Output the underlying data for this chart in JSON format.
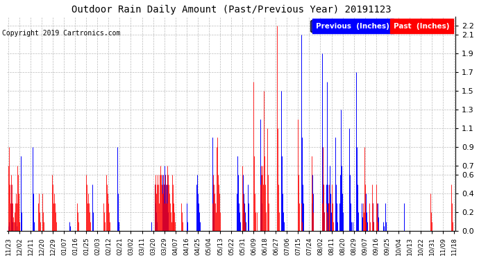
{
  "title": "Outdoor Rain Daily Amount (Past/Previous Year) 20191123",
  "copyright": "Copyright 2019 Cartronics.com",
  "legend_labels": [
    "Previous  (Inches)",
    "Past  (Inches)"
  ],
  "ylim": [
    0.0,
    2.3
  ],
  "yticks": [
    0.0,
    0.2,
    0.4,
    0.6,
    0.7,
    0.9,
    1.1,
    1.3,
    1.5,
    1.7,
    1.9,
    2.1,
    2.2
  ],
  "background_color": "#ffffff",
  "grid_color": "#bbbbbb",
  "x_labels": [
    "11/23",
    "12/02",
    "12/11",
    "12/20",
    "12/29",
    "01/07",
    "01/16",
    "01/25",
    "02/03",
    "02/12",
    "02/21",
    "03/02",
    "03/11",
    "03/20",
    "03/29",
    "04/07",
    "04/16",
    "04/25",
    "05/04",
    "05/13",
    "05/22",
    "05/31",
    "06/09",
    "06/18",
    "06/27",
    "07/06",
    "07/15",
    "07/24",
    "08/02",
    "08/11",
    "08/20",
    "08/29",
    "09/07",
    "09/16",
    "09/25",
    "10/04",
    "10/13",
    "10/22",
    "10/31",
    "11/09",
    "11/18"
  ],
  "blue_data": [
    0.05,
    0.1,
    0.0,
    0.0,
    0.5,
    0.3,
    0.1,
    0.0,
    0.0,
    0.0,
    0.1,
    0.0,
    0.05,
    0.0,
    0.0,
    0.0,
    0.0,
    0.0,
    0.0,
    0.8,
    0.2,
    0.0,
    0.0,
    0.0,
    0.0,
    0.0,
    0.0,
    0.0,
    0.0,
    0.0,
    0.0,
    0.0,
    0.0,
    0.0,
    0.0,
    0.0,
    0.9,
    0.4,
    0.1,
    0.0,
    0.0,
    0.0,
    0.0,
    0.0,
    0.0,
    0.0,
    0.0,
    0.0,
    0.0,
    0.0,
    0.0,
    0.0,
    0.0,
    0.0,
    0.0,
    0.0,
    0.0,
    0.0,
    0.0,
    0.0,
    0.0,
    0.0,
    0.0,
    0.0,
    0.0,
    0.0,
    0.0,
    0.0,
    0.0,
    0.0,
    0.0,
    0.0,
    0.0,
    0.0,
    0.0,
    0.0,
    0.0,
    0.0,
    0.0,
    0.0,
    0.0,
    0.0,
    0.0,
    0.0,
    0.0,
    0.0,
    0.0,
    0.0,
    0.0,
    0.0,
    0.1,
    0.05,
    0.0,
    0.0,
    0.0,
    0.0,
    0.0,
    0.0,
    0.0,
    0.0,
    0.0,
    0.0,
    0.0,
    0.0,
    0.0,
    0.0,
    0.0,
    0.0,
    0.0,
    0.0,
    0.0,
    0.0,
    0.0,
    0.0,
    0.0,
    0.0,
    0.0,
    0.0,
    0.0,
    0.0,
    0.0,
    0.0,
    0.0,
    0.5,
    0.2,
    0.0,
    0.0,
    0.0,
    0.0,
    0.0,
    0.0,
    0.0,
    0.0,
    0.0,
    0.0,
    0.0,
    0.0,
    0.0,
    0.0,
    0.0,
    0.0,
    0.0,
    0.0,
    0.0,
    0.0,
    0.0,
    0.0,
    0.0,
    0.0,
    0.0,
    0.0,
    0.0,
    0.0,
    0.0,
    0.0,
    0.0,
    0.0,
    0.0,
    0.0,
    0.0,
    0.9,
    0.4,
    0.1,
    0.0,
    0.0,
    0.0,
    0.0,
    0.0,
    0.0,
    0.0,
    0.0,
    0.0,
    0.0,
    0.0,
    0.0,
    0.0,
    0.0,
    0.0,
    0.0,
    0.0,
    0.0,
    0.0,
    0.0,
    0.0,
    0.0,
    0.0,
    0.0,
    0.0,
    0.0,
    0.0,
    0.0,
    0.0,
    0.0,
    0.0,
    0.0,
    0.0,
    0.0,
    0.0,
    0.0,
    0.0,
    0.0,
    0.0,
    0.0,
    0.0,
    0.0,
    0.0,
    0.0,
    0.0,
    0.0,
    0.0,
    0.1,
    0.0,
    0.0,
    0.0,
    0.0,
    0.5,
    0.3,
    0.2,
    0.1,
    0.0,
    0.0,
    0.0,
    0.0,
    0.0,
    0.0,
    0.0,
    0.6,
    0.4,
    0.5,
    0.7,
    0.6,
    0.3,
    0.5,
    0.6,
    0.2,
    0.0,
    0.0,
    0.0,
    0.0,
    0.0,
    0.0,
    0.0,
    0.0,
    0.0,
    0.0,
    0.0,
    0.0,
    0.0,
    0.0,
    0.0,
    0.0,
    0.0,
    0.0,
    0.0,
    0.0,
    0.0,
    0.0,
    0.0,
    0.0,
    0.0,
    0.0,
    0.0,
    0.3,
    0.1,
    0.0,
    0.0,
    0.0,
    0.0,
    0.0,
    0.0,
    0.0,
    0.0,
    0.0,
    0.0,
    0.0,
    0.0,
    0.5,
    0.6,
    0.4,
    0.3,
    0.2,
    0.1,
    0.0,
    0.0,
    0.0,
    0.0,
    0.0,
    0.0,
    0.0,
    0.0,
    0.0,
    0.0,
    0.0,
    0.0,
    0.0,
    0.0,
    0.0,
    0.0,
    0.0,
    0.0,
    1.0,
    0.5,
    0.3,
    0.0,
    0.0,
    0.0,
    0.0,
    0.0,
    0.0,
    0.0,
    0.0,
    0.0,
    0.0,
    0.0,
    0.0,
    0.0,
    0.0,
    0.0,
    0.0,
    0.0,
    0.0,
    0.0,
    0.0,
    0.0,
    0.0,
    0.0,
    0.0,
    0.0,
    0.0,
    0.0,
    0.0,
    0.0,
    0.0,
    0.0,
    0.0,
    0.4,
    0.8,
    0.6,
    0.3,
    0.2,
    0.1,
    0.0,
    0.0,
    0.0,
    0.6,
    0.4,
    0.3,
    0.2,
    0.1,
    0.0,
    0.0,
    0.5,
    0.3,
    0.0,
    0.0,
    0.0,
    0.0,
    0.0,
    0.0,
    0.0,
    0.0,
    0.0,
    0.0,
    0.0,
    0.0,
    0.0,
    0.0,
    0.0,
    0.0,
    0.0,
    1.2,
    0.6,
    0.3,
    0.0,
    0.0,
    0.0,
    0.0,
    0.0,
    0.0,
    0.0,
    0.0,
    0.0,
    0.0,
    0.0,
    0.0,
    0.0,
    0.0,
    0.0,
    0.0,
    0.0,
    0.0,
    0.0,
    0.0,
    0.0,
    0.0,
    0.0,
    0.0,
    0.0,
    0.0,
    0.0,
    1.5,
    0.8,
    0.4,
    0.2,
    0.1,
    0.0,
    0.0,
    0.0,
    0.0,
    0.0,
    0.0,
    0.0,
    0.0,
    0.0,
    0.0,
    0.0,
    0.0,
    0.0,
    0.0,
    0.0,
    0.0,
    0.0,
    0.0,
    0.0,
    0.0,
    0.0,
    0.0,
    0.0,
    0.0,
    0.0,
    2.1,
    1.0,
    0.5,
    0.3,
    0.0,
    0.0,
    0.0,
    0.0,
    0.0,
    0.0,
    0.0,
    0.0,
    0.0,
    0.0,
    0.0,
    0.3,
    0.6,
    0.4,
    0.0,
    0.0,
    0.0,
    0.0,
    0.0,
    0.0,
    0.0,
    0.0,
    0.0,
    0.0,
    0.0,
    0.0,
    1.9,
    0.9,
    0.5,
    0.2,
    0.0,
    0.0,
    0.5,
    1.6,
    0.8,
    0.5,
    0.3,
    0.0,
    0.7,
    0.4,
    0.2,
    0.0,
    0.0,
    0.0,
    0.0,
    0.0,
    1.0,
    0.5,
    0.3,
    0.1,
    0.0,
    0.0,
    0.3,
    0.6,
    1.3,
    0.7,
    0.4,
    0.2,
    0.0,
    0.0,
    0.0,
    0.0,
    0.0,
    0.0,
    0.0,
    0.0,
    1.1,
    0.6,
    0.3,
    0.1,
    0.0,
    0.1,
    0.0,
    0.0,
    0.0,
    0.0,
    1.7,
    0.9,
    0.5,
    0.2,
    0.0,
    0.0,
    0.0,
    0.0,
    0.3,
    0.15,
    0.0,
    0.0,
    0.0,
    0.0,
    0.0,
    0.4,
    0.2,
    0.1,
    0.0,
    0.0,
    0.0,
    0.0,
    0.0,
    0.0,
    0.0,
    0.3,
    0.1,
    0.0,
    0.0,
    0.0,
    0.0,
    0.0,
    0.3,
    0.15,
    0.0,
    0.0,
    0.0,
    0.0,
    0.0,
    0.0,
    0.1,
    0.05,
    0.0,
    0.3,
    0.1,
    0.0,
    0.0,
    0.0,
    0.0,
    0.0,
    0.0,
    0.0,
    0.0,
    0.0,
    0.0,
    0.0,
    0.0,
    0.0,
    0.0,
    0.0,
    0.0,
    0.0,
    0.0,
    0.0,
    0.0,
    0.0,
    0.0,
    0.0,
    0.0,
    0.0,
    0.3,
    0.15,
    0.0,
    0.0,
    0.0,
    0.0,
    0.0,
    0.0,
    0.0,
    0.0,
    0.0,
    0.0,
    0.0,
    0.0,
    0.0,
    0.0,
    0.0,
    0.0,
    0.0,
    0.0,
    0.0,
    0.0,
    0.0,
    0.0,
    0.0,
    0.0,
    0.0,
    0.0,
    0.0,
    0.0,
    0.0,
    0.0,
    0.0,
    0.0,
    0.0,
    0.0,
    0.0,
    0.0,
    0.0,
    0.0,
    0.0,
    0.0,
    0.0,
    0.0,
    0.0,
    0.0,
    0.0,
    0.0,
    0.0,
    0.0,
    0.0,
    0.0,
    0.0,
    0.0,
    0.0,
    0.0,
    0.0,
    0.0,
    0.0,
    0.0,
    0.0,
    0.0,
    0.0,
    0.0,
    0.0,
    0.0,
    0.0,
    0.0,
    0.0,
    0.0,
    0.0,
    0.0,
    0.0,
    0.0,
    0.0
  ],
  "red_data": [
    0.7,
    0.9,
    0.5,
    0.3,
    0.6,
    0.5,
    0.3,
    0.15,
    0.1,
    0.2,
    0.3,
    0.4,
    0.3,
    0.7,
    0.6,
    0.4,
    0.3,
    0.1,
    0.0,
    0.0,
    0.0,
    0.0,
    0.0,
    0.0,
    0.0,
    0.0,
    0.0,
    0.0,
    0.0,
    0.0,
    0.0,
    0.0,
    0.0,
    0.0,
    0.0,
    0.0,
    0.0,
    0.0,
    0.0,
    0.0,
    0.0,
    0.0,
    0.0,
    0.0,
    0.3,
    0.4,
    0.2,
    0.1,
    0.0,
    0.0,
    0.4,
    0.2,
    0.1,
    0.0,
    0.0,
    0.0,
    0.0,
    0.0,
    0.0,
    0.0,
    0.0,
    0.0,
    0.0,
    0.0,
    0.6,
    0.5,
    0.3,
    0.4,
    0.3,
    0.2,
    0.1,
    0.0,
    0.0,
    0.0,
    0.0,
    0.0,
    0.0,
    0.0,
    0.0,
    0.0,
    0.0,
    0.0,
    0.0,
    0.0,
    0.0,
    0.0,
    0.0,
    0.0,
    0.0,
    0.0,
    0.0,
    0.0,
    0.0,
    0.0,
    0.0,
    0.0,
    0.0,
    0.0,
    0.0,
    0.0,
    0.0,
    0.3,
    0.2,
    0.1,
    0.0,
    0.0,
    0.0,
    0.0,
    0.0,
    0.0,
    0.0,
    0.0,
    0.0,
    0.0,
    0.6,
    0.5,
    0.3,
    0.4,
    0.3,
    0.2,
    0.1,
    0.0,
    0.0,
    0.0,
    0.0,
    0.0,
    0.0,
    0.0,
    0.0,
    0.0,
    0.0,
    0.0,
    0.0,
    0.0,
    0.0,
    0.0,
    0.0,
    0.0,
    0.0,
    0.0,
    0.3,
    0.2,
    0.1,
    0.0,
    0.6,
    0.5,
    0.4,
    0.3,
    0.2,
    0.1,
    0.0,
    0.0,
    0.0,
    0.0,
    0.0,
    0.0,
    0.0,
    0.0,
    0.0,
    0.0,
    0.0,
    0.0,
    0.0,
    0.0,
    0.0,
    0.0,
    0.0,
    0.0,
    0.0,
    0.0,
    0.0,
    0.0,
    0.0,
    0.0,
    0.0,
    0.0,
    0.0,
    0.0,
    0.0,
    0.0,
    0.0,
    0.0,
    0.0,
    0.0,
    0.0,
    0.0,
    0.0,
    0.0,
    0.0,
    0.0,
    0.0,
    0.0,
    0.0,
    0.0,
    0.0,
    0.0,
    0.0,
    0.0,
    0.0,
    0.0,
    0.0,
    0.0,
    0.0,
    0.0,
    0.0,
    0.0,
    0.0,
    0.0,
    0.0,
    0.0,
    0.0,
    0.0,
    0.0,
    0.0,
    0.0,
    0.5,
    0.6,
    0.4,
    0.5,
    0.6,
    0.5,
    0.3,
    0.6,
    0.7,
    0.6,
    0.5,
    0.4,
    0.6,
    0.5,
    0.3,
    0.6,
    0.5,
    0.3,
    0.7,
    0.6,
    0.5,
    0.4,
    0.3,
    0.2,
    0.1,
    0.6,
    0.5,
    0.4,
    0.3,
    0.2,
    0.1,
    0.0,
    0.0,
    0.0,
    0.0,
    0.0,
    0.0,
    0.0,
    0.0,
    0.3,
    0.2,
    0.1,
    0.0,
    0.0,
    0.0,
    0.0,
    0.0,
    0.0,
    0.0,
    0.0,
    0.0,
    0.0,
    0.0,
    0.0,
    0.0,
    0.0,
    0.0,
    0.0,
    0.0,
    0.0,
    0.0,
    0.0,
    0.0,
    0.0,
    0.0,
    0.0,
    0.0,
    0.0,
    0.0,
    0.0,
    0.0,
    0.0,
    0.0,
    0.0,
    0.0,
    0.0,
    0.0,
    0.0,
    0.0,
    0.0,
    0.0,
    0.0,
    0.0,
    0.0,
    0.0,
    0.3,
    0.6,
    0.5,
    0.4,
    0.3,
    0.2,
    0.9,
    1.0,
    0.6,
    0.5,
    0.4,
    0.2,
    0.0,
    0.0,
    0.0,
    0.0,
    0.0,
    0.0,
    0.0,
    0.0,
    0.0,
    0.0,
    0.0,
    0.0,
    0.0,
    0.0,
    0.0,
    0.0,
    0.0,
    0.0,
    0.0,
    0.0,
    0.0,
    0.0,
    0.0,
    0.0,
    0.0,
    0.0,
    0.0,
    0.0,
    0.0,
    0.0,
    0.0,
    0.7,
    0.4,
    0.3,
    0.2,
    0.1,
    0.0,
    0.0,
    0.0,
    0.0,
    0.0,
    0.0,
    0.0,
    0.0,
    0.0,
    0.0,
    0.0,
    0.0,
    1.6,
    0.8,
    0.4,
    0.2,
    0.0,
    0.2,
    0.0,
    0.0,
    0.0,
    0.0,
    0.5,
    0.7,
    0.6,
    0.7,
    0.5,
    1.5,
    0.8,
    0.5,
    0.2,
    0.0,
    1.1,
    0.6,
    0.3,
    0.0,
    0.0,
    0.0,
    0.0,
    0.0,
    0.0,
    0.0,
    0.0,
    0.0,
    0.0,
    0.0,
    2.2,
    1.1,
    0.5,
    0.2,
    0.0,
    0.0,
    0.0,
    0.0,
    0.0,
    0.0,
    0.0,
    0.0,
    0.0,
    0.0,
    0.0,
    0.0,
    0.0,
    0.0,
    0.0,
    0.0,
    0.0,
    0.0,
    0.0,
    0.0,
    0.0,
    0.0,
    0.0,
    0.0,
    0.0,
    0.0,
    0.0,
    1.2,
    0.6,
    0.3,
    0.0,
    0.0,
    0.3,
    0.1,
    0.0,
    0.0,
    0.0,
    0.0,
    0.0,
    0.0,
    0.0,
    0.0,
    0.0,
    0.0,
    0.0,
    0.0,
    0.0,
    0.8,
    0.4,
    0.2,
    0.0,
    0.0,
    0.0,
    0.0,
    0.0,
    0.0,
    0.0,
    0.0,
    0.0,
    0.0,
    0.0,
    0.0,
    0.3,
    0.9,
    0.5,
    0.2,
    0.0,
    0.0,
    0.3,
    0.2,
    0.1,
    0.0,
    0.3,
    0.5,
    0.3,
    0.0,
    0.0,
    0.5,
    0.3,
    0.1,
    0.0,
    0.0,
    0.0,
    0.0,
    0.0,
    0.0,
    0.0,
    0.0,
    0.0,
    0.0,
    0.0,
    0.0,
    0.0,
    0.0,
    0.0,
    0.0,
    0.0,
    0.0,
    0.0,
    0.0,
    0.0,
    0.0,
    0.0,
    0.0,
    0.0,
    0.0,
    0.0,
    0.0,
    0.0,
    0.0,
    0.0,
    0.0,
    0.0,
    0.0,
    0.0,
    0.0,
    0.0,
    0.0,
    0.0,
    0.0,
    0.0,
    0.0,
    0.3,
    0.2,
    0.9,
    0.5,
    0.3,
    0.1,
    0.0,
    0.0,
    0.0,
    0.0,
    0.3,
    0.1,
    0.0,
    0.0,
    0.5,
    0.3,
    0.1,
    0.0,
    0.0,
    0.0,
    0.5,
    0.3,
    0.1,
    0.0,
    0.0,
    0.0,
    0.0,
    0.0,
    0.0,
    0.0,
    0.0,
    0.0,
    0.0,
    0.0,
    0.0,
    0.0,
    0.0,
    0.0,
    0.0,
    0.0,
    0.0,
    0.0,
    0.0,
    0.0,
    0.0,
    0.0,
    0.0,
    0.0,
    0.0,
    0.0,
    0.0,
    0.0,
    0.0,
    0.0,
    0.0,
    0.0,
    0.0,
    0.0,
    0.0,
    0.0,
    0.0,
    0.0,
    0.0,
    0.0,
    0.0,
    0.0,
    0.0,
    0.0,
    0.0,
    0.0,
    0.0,
    0.0,
    0.0,
    0.0,
    0.0,
    0.0,
    0.0,
    0.0,
    0.0,
    0.0,
    0.0,
    0.0,
    0.0,
    0.0,
    0.0,
    0.0,
    0.0,
    0.0,
    0.0,
    0.0,
    0.0,
    0.0,
    0.0,
    0.0,
    0.0,
    0.0,
    0.0,
    0.0,
    0.0,
    0.4,
    0.2,
    0.1,
    0.0,
    0.0,
    0.0,
    0.0,
    0.0,
    0.0,
    0.0,
    0.0,
    0.0,
    0.0,
    0.0,
    0.0,
    0.0,
    0.0,
    0.0,
    0.0,
    0.0,
    0.0,
    0.0,
    0.0,
    0.0,
    0.0,
    0.0,
    0.0,
    0.0,
    0.0,
    0.0,
    0.0,
    0.5,
    0.3,
    0.1,
    0.0,
    0.0
  ]
}
